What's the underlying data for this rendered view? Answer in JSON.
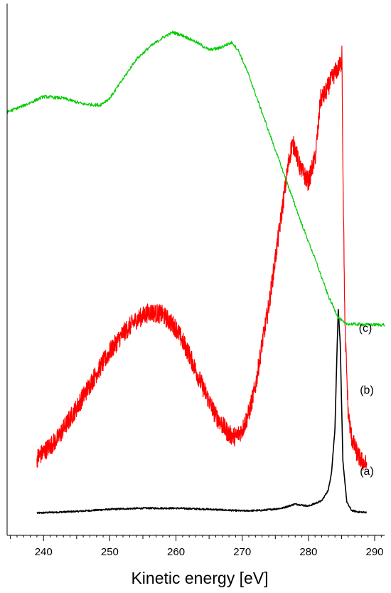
{
  "chart_data": {
    "type": "line",
    "xlabel": "Kinetic energy [eV]",
    "ylabel": "",
    "xlim": [
      234.5,
      291.5
    ],
    "ylim": [
      0,
      1
    ],
    "x_ticks": [
      240,
      250,
      260,
      270,
      280,
      290
    ],
    "y_ticks_shown": false,
    "grid": false,
    "series": [
      {
        "name": "(a)",
        "color": "#000000",
        "x": [
          239,
          245,
          250,
          255,
          260,
          265,
          270,
          273,
          276,
          278,
          280,
          282,
          283,
          283.5,
          284,
          284.3,
          284.5,
          284.8,
          285.2,
          285.8,
          286.5,
          287.5,
          288.8
        ],
        "y": [
          0.042,
          0.045,
          0.049,
          0.051,
          0.051,
          0.049,
          0.046,
          0.047,
          0.051,
          0.059,
          0.055,
          0.065,
          0.085,
          0.12,
          0.2,
          0.34,
          0.425,
          0.36,
          0.14,
          0.062,
          0.047,
          0.044,
          0.043
        ]
      },
      {
        "name": "(b)",
        "color": "#ff0000",
        "x": [
          239,
          242,
          245,
          248,
          250,
          252,
          254,
          256,
          258,
          260,
          262,
          264,
          266,
          268,
          269,
          270,
          271,
          272,
          273,
          274,
          275,
          276,
          277,
          277.5,
          278,
          278.5,
          279,
          280,
          281,
          281.5,
          281.8,
          282.5,
          283.2,
          284,
          284.6,
          285,
          285.05,
          285.2,
          285.5,
          286,
          286.5,
          287,
          287.5,
          288,
          288.8
        ],
        "y": [
          0.145,
          0.18,
          0.24,
          0.305,
          0.345,
          0.38,
          0.405,
          0.42,
          0.415,
          0.39,
          0.34,
          0.28,
          0.225,
          0.19,
          0.185,
          0.198,
          0.23,
          0.28,
          0.36,
          0.43,
          0.52,
          0.61,
          0.7,
          0.735,
          0.73,
          0.7,
          0.685,
          0.665,
          0.71,
          0.77,
          0.82,
          0.83,
          0.85,
          0.87,
          0.88,
          0.89,
          0.92,
          0.7,
          0.4,
          0.23,
          0.185,
          0.165,
          0.15,
          0.14,
          0.132
        ]
      },
      {
        "name": "(c)",
        "color": "#00cc00",
        "x": [
          234.5,
          237,
          240,
          243,
          246,
          248.5,
          250,
          252,
          254,
          256,
          258,
          259.5,
          261,
          263,
          265,
          266.5,
          267.5,
          268.5,
          269.5,
          271,
          273,
          275,
          277,
          279,
          281,
          283,
          284.5,
          285.5,
          287,
          289,
          291.5
        ],
        "y": [
          0.796,
          0.808,
          0.825,
          0.822,
          0.811,
          0.809,
          0.822,
          0.858,
          0.895,
          0.918,
          0.936,
          0.946,
          0.94,
          0.928,
          0.913,
          0.916,
          0.922,
          0.927,
          0.91,
          0.865,
          0.795,
          0.725,
          0.655,
          0.585,
          0.52,
          0.45,
          0.41,
          0.398,
          0.397,
          0.396,
          0.396
        ]
      }
    ],
    "annotations": [
      "(a)",
      "(b)",
      "(c)"
    ]
  }
}
